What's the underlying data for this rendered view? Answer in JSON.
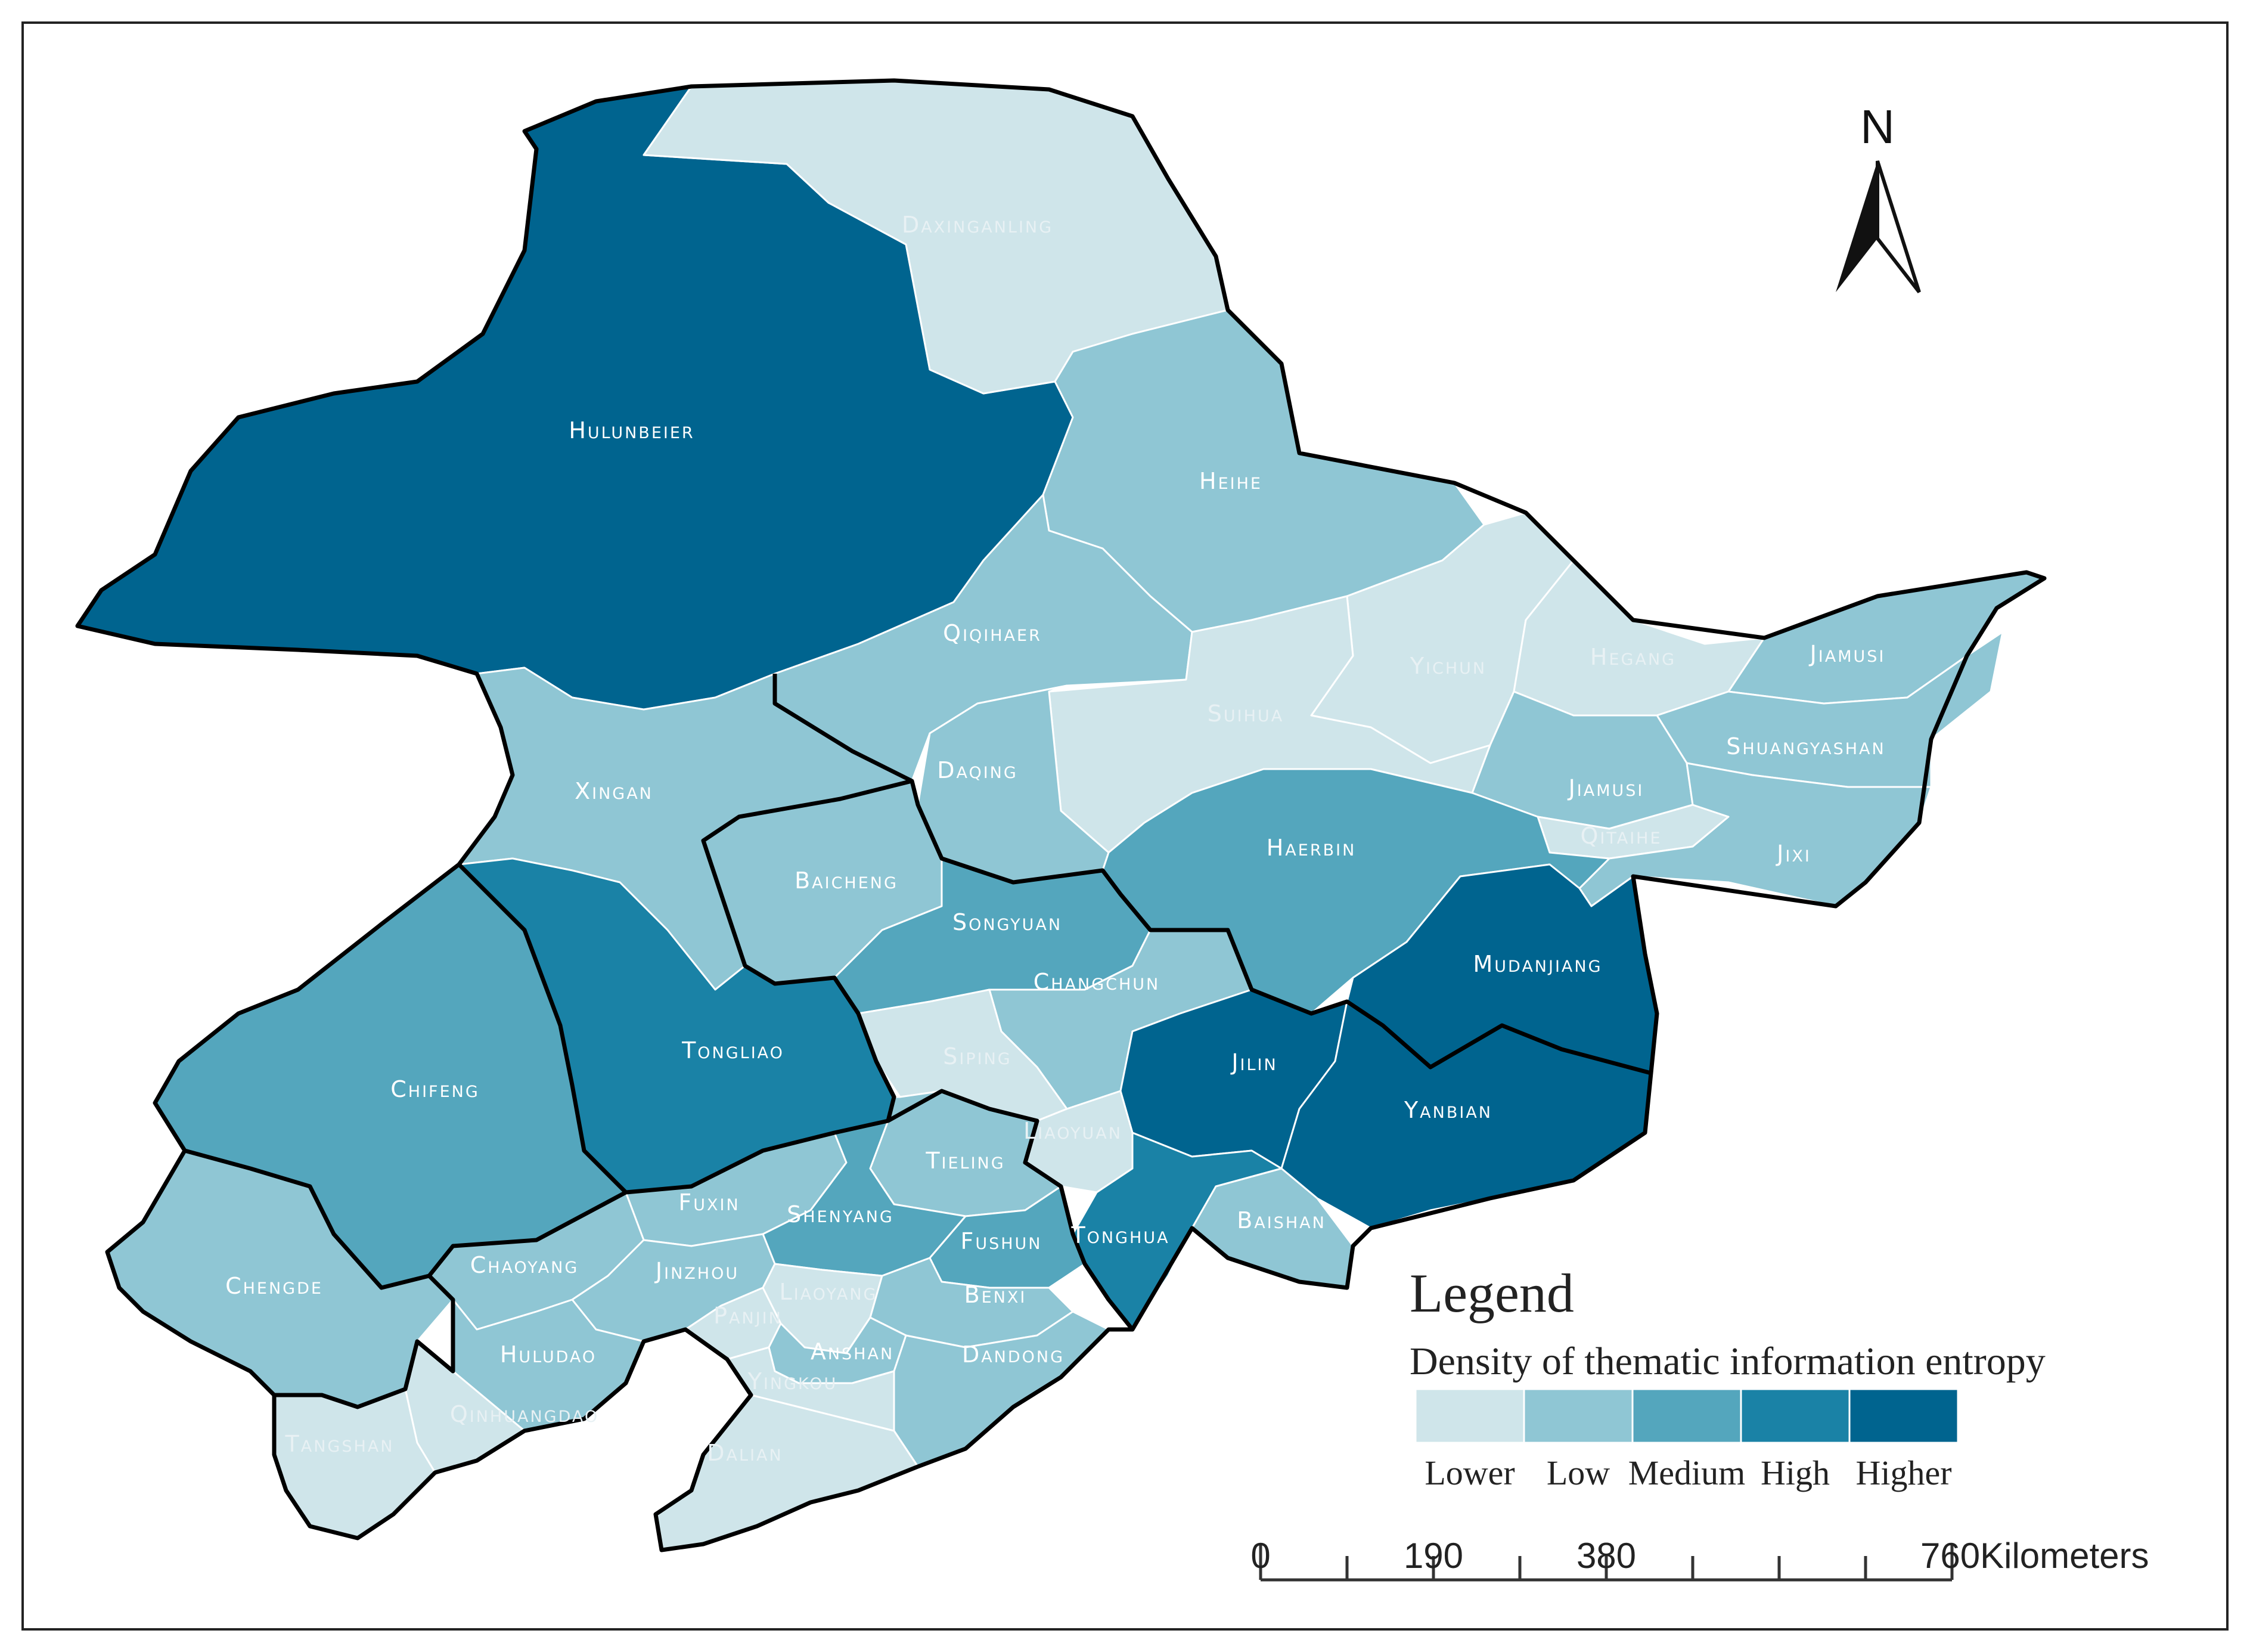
{
  "colors": {
    "lower": "#cfe5ea",
    "low": "#8fc6d4",
    "medium": "#54a6bd",
    "high": "#1a82a6",
    "higher": "#00648f"
  },
  "north_arrow": {
    "label": "N",
    "icon": "north-arrow-icon"
  },
  "legend": {
    "title": "Legend",
    "subtitle": "Density of thematic information entropy",
    "classes": [
      "Lower",
      "Low",
      "Medium",
      "High",
      "Higher"
    ]
  },
  "scale_bar": {
    "ticks": [
      "0",
      "190",
      "380",
      "760Kilometers"
    ]
  },
  "regions": [
    {
      "key": "hulunbeier",
      "name": "Hulunbeier",
      "level": "higher"
    },
    {
      "key": "daxinganling",
      "name": "Daxinganling",
      "level": "lower"
    },
    {
      "key": "heihe",
      "name": "Heihe",
      "level": "low"
    },
    {
      "key": "qiqihaer",
      "name": "Qiqihaer",
      "level": "low"
    },
    {
      "key": "yichun",
      "name": "Yichun",
      "level": "lower"
    },
    {
      "key": "hegang",
      "name": "Hegang",
      "level": "lower"
    },
    {
      "key": "jiamusi_ne",
      "name": "Jiamusi",
      "level": "low"
    },
    {
      "key": "shuangyashan",
      "name": "Shuangyashan",
      "level": "low"
    },
    {
      "key": "jiamusi",
      "name": "Jiamusi",
      "level": "low"
    },
    {
      "key": "qitaihe",
      "name": "Qitaihe",
      "level": "lower"
    },
    {
      "key": "jixi",
      "name": "Jixi",
      "level": "low"
    },
    {
      "key": "suihua",
      "name": "Suihua",
      "level": "lower"
    },
    {
      "key": "daqing",
      "name": "Daqing",
      "level": "low"
    },
    {
      "key": "xingan",
      "name": "Xingan",
      "level": "low"
    },
    {
      "key": "haerbin",
      "name": "Haerbin",
      "level": "medium"
    },
    {
      "key": "mudanjiang",
      "name": "Mudanjiang",
      "level": "higher"
    },
    {
      "key": "baicheng",
      "name": "Baicheng",
      "level": "low"
    },
    {
      "key": "songyuan",
      "name": "Songyuan",
      "level": "medium"
    },
    {
      "key": "changchun",
      "name": "Changchun",
      "level": "low"
    },
    {
      "key": "jilin",
      "name": "Jilin",
      "level": "higher"
    },
    {
      "key": "yanbian",
      "name": "Yanbian",
      "level": "higher"
    },
    {
      "key": "tongliao",
      "name": "Tongliao",
      "level": "high"
    },
    {
      "key": "chifeng",
      "name": "Chifeng",
      "level": "medium"
    },
    {
      "key": "siping",
      "name": "Siping",
      "level": "lower"
    },
    {
      "key": "liaoyuan",
      "name": "Liaoyuan",
      "level": "lower"
    },
    {
      "key": "tieling",
      "name": "Tieling",
      "level": "low"
    },
    {
      "key": "tonghua",
      "name": "Tonghua",
      "level": "high"
    },
    {
      "key": "baishan",
      "name": "Baishan",
      "level": "low"
    },
    {
      "key": "fuxin",
      "name": "Fuxin",
      "level": "low"
    },
    {
      "key": "shenyang",
      "name": "Shenyang",
      "level": "medium"
    },
    {
      "key": "fushun",
      "name": "Fushun",
      "level": "medium"
    },
    {
      "key": "chengde",
      "name": "Chengde",
      "level": "low"
    },
    {
      "key": "chaoyang",
      "name": "Chaoyang",
      "level": "low"
    },
    {
      "key": "jinzhou",
      "name": "Jinzhou",
      "level": "low"
    },
    {
      "key": "panjin",
      "name": "Panjin",
      "level": "lower"
    },
    {
      "key": "liaoyang",
      "name": "Liaoyang",
      "level": "lower"
    },
    {
      "key": "benxi",
      "name": "Benxi",
      "level": "low"
    },
    {
      "key": "anshan",
      "name": "Anshan",
      "level": "low"
    },
    {
      "key": "dandong",
      "name": "Dandong",
      "level": "low"
    },
    {
      "key": "huludao",
      "name": "Huludao",
      "level": "low"
    },
    {
      "key": "yingkou",
      "name": "Yingkou",
      "level": "lower"
    },
    {
      "key": "qinhuangdao",
      "name": "Qinhuangdao",
      "level": "lower"
    },
    {
      "key": "tangshan",
      "name": "Tangshan",
      "level": "lower"
    },
    {
      "key": "dalian",
      "name": "Dalian",
      "level": "lower"
    }
  ]
}
